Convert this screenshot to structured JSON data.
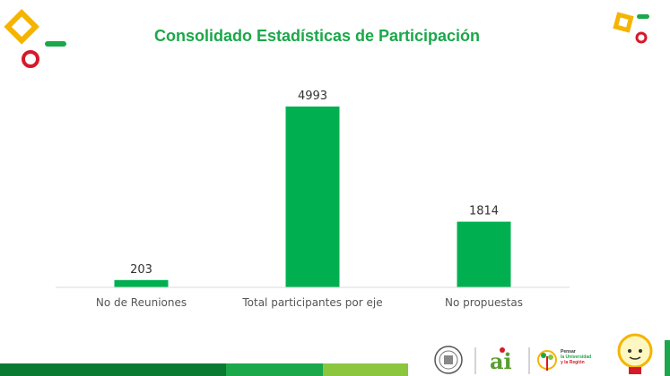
{
  "slide": {
    "title": "Consolidado Estadísticas de Participación",
    "title_color": "#1aa84a"
  },
  "chart_data": {
    "type": "bar",
    "categories": [
      "No de Reuniones",
      "Total participantes por eje",
      "No propuestas"
    ],
    "values": [
      203,
      4993,
      1814
    ],
    "title": "",
    "xlabel": "",
    "ylabel": "",
    "ylim": [
      0,
      5500
    ],
    "grid": false,
    "legend": "none",
    "bar_color": "#00b050"
  },
  "logos": {
    "ai_mark": "ai",
    "ai_caption": "Universidad de Nariño",
    "tagline": [
      "Pensar",
      "la Universidad",
      "y la Región"
    ]
  },
  "colors": {
    "green_dark": "#0a7a33",
    "green": "#1aa84a",
    "green_light": "#8cc63f",
    "yellow": "#f5b400",
    "red": "#d7192a"
  }
}
